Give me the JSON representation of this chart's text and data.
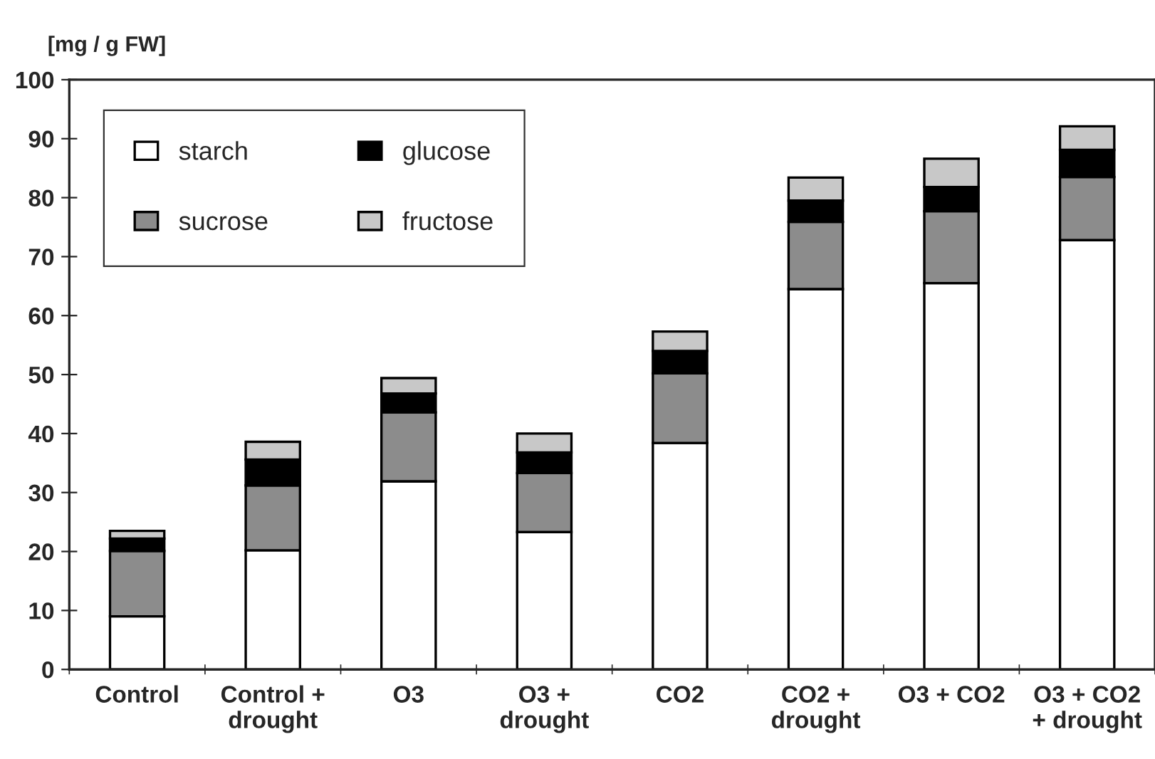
{
  "chart_data": {
    "type": "bar",
    "stacked": true,
    "ylabel": "[mg / g FW]",
    "categories": [
      "Control",
      "Control +\ndrought",
      "O3",
      "O3 +\ndrought",
      "CO2",
      "CO2 +\ndrought",
      "O3 + CO2",
      "O3 + CO2\n+ drought"
    ],
    "series": [
      {
        "name": "starch",
        "color": "#ffffff",
        "values": [
          9.0,
          20.2,
          31.9,
          23.3,
          38.4,
          64.5,
          65.5,
          72.8
        ]
      },
      {
        "name": "sucrose",
        "color": "#8c8c8c",
        "values": [
          11.1,
          11.0,
          11.7,
          10.0,
          11.8,
          11.4,
          12.2,
          10.7
        ]
      },
      {
        "name": "glucose",
        "color": "#000000",
        "values": [
          2.1,
          4.4,
          3.2,
          3.5,
          3.8,
          3.6,
          4.1,
          4.6
        ]
      },
      {
        "name": "fructose",
        "color": "#c8c8c8",
        "values": [
          1.3,
          3.0,
          2.6,
          3.2,
          3.3,
          3.9,
          4.8,
          4.0
        ]
      }
    ],
    "ylim": [
      0,
      100
    ],
    "yticks": [
      0,
      10,
      20,
      30,
      40,
      50,
      60,
      70,
      80,
      90,
      100
    ],
    "grid": false,
    "legend": "top left"
  }
}
